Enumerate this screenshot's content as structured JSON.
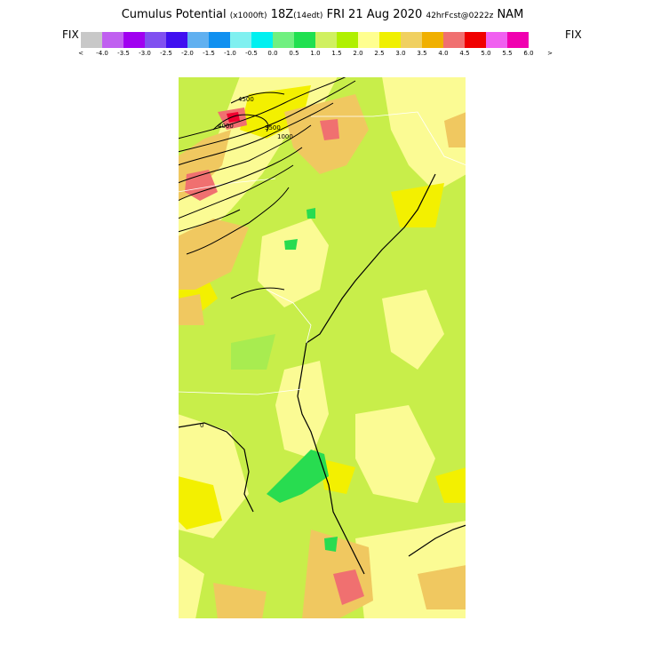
{
  "title": {
    "main": "Cumulus Potential",
    "units": "(x1000ft)",
    "time": "18Z",
    "local": "(14edt)",
    "date": "FRI 21 Aug 2020",
    "forecast": "42hrFcst@0222z",
    "model": "NAM"
  },
  "legend": {
    "left_label": "FIX",
    "right_label": "FIX",
    "colors": [
      "#c8c8c8",
      "#c060f0",
      "#a000f0",
      "#8050f0",
      "#4010f0",
      "#60b0f0",
      "#1090f0",
      "#80f0f0",
      "#00f0f0",
      "#70f080",
      "#20e050",
      "#d0f060",
      "#b0f000",
      "#ffff90",
      "#f0f000",
      "#f0d060",
      "#f0b000",
      "#f07070",
      "#f00000",
      "#f060f0",
      "#f000b0"
    ],
    "ticks": [
      "<",
      "-4.0",
      "-3.5",
      "-3.0",
      "-2.5",
      "-2.0",
      "-1.5",
      "-1.0",
      "-0.5",
      "0.0",
      "0.5",
      "1.0",
      "1.5",
      "2.0",
      "2.5",
      "3.0",
      "3.5",
      "4.0",
      "4.5",
      "5.0",
      "5.5",
      "6.0",
      ">"
    ]
  },
  "map": {
    "contour_labels": [
      "4500",
      "4000",
      "3500",
      "1000",
      "0"
    ]
  }
}
